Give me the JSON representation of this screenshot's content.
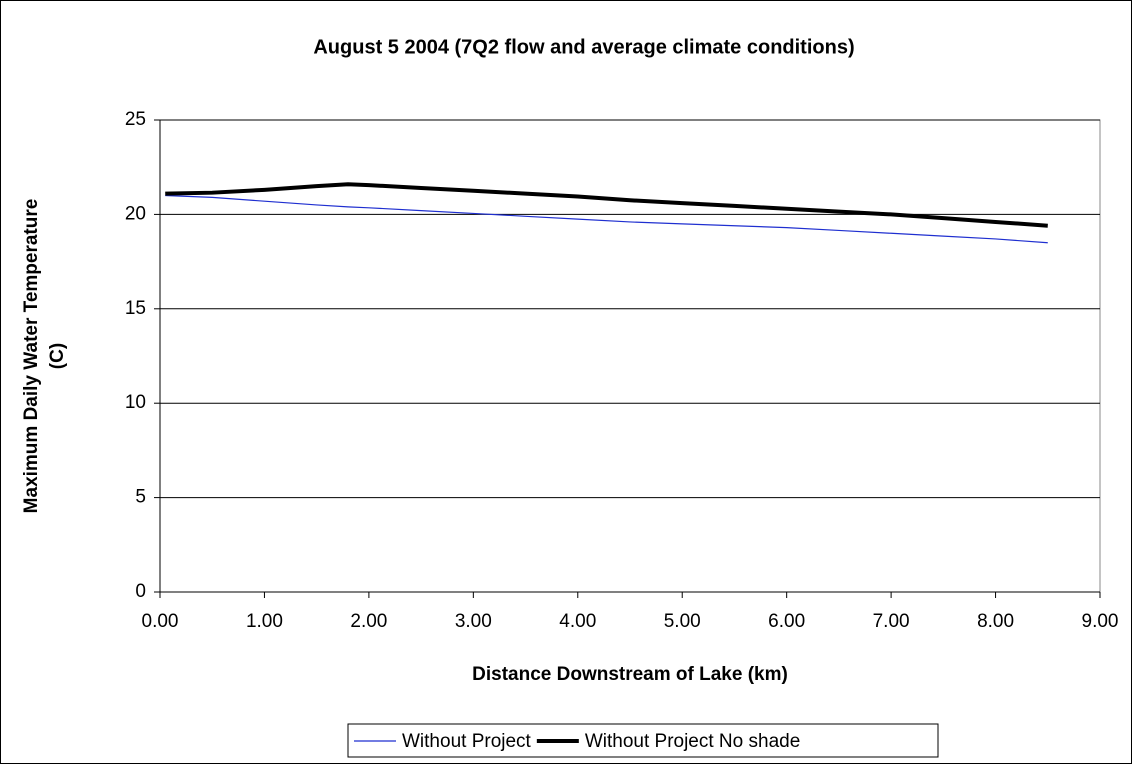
{
  "chart_data": {
    "type": "line",
    "title": "August 5 2004 (7Q2 flow and average climate conditions)",
    "xlabel": "Distance Downstream of Lake (km)",
    "ylabel": [
      "Maximum Daily Water Temperature",
      "(C)"
    ],
    "x": [
      0.05,
      0.5,
      1,
      1.5,
      1.8,
      2,
      2.5,
      3,
      3.5,
      4,
      4.5,
      5,
      5.5,
      6,
      6.5,
      7,
      7.5,
      8,
      8.5
    ],
    "series": [
      {
        "name": "Without Project",
        "color": "#1f2fd0",
        "width": 1.2,
        "values": [
          21.0,
          20.9,
          20.7,
          20.5,
          20.4,
          20.35,
          20.2,
          20.05,
          19.9,
          19.75,
          19.6,
          19.5,
          19.4,
          19.3,
          19.15,
          19.0,
          18.85,
          18.7,
          18.5
        ]
      },
      {
        "name": "Without Project No shade",
        "color": "#000000",
        "width": 4,
        "values": [
          21.1,
          21.15,
          21.3,
          21.5,
          21.6,
          21.55,
          21.4,
          21.25,
          21.1,
          20.95,
          20.75,
          20.6,
          20.45,
          20.3,
          20.15,
          20.0,
          19.8,
          19.6,
          19.4
        ]
      }
    ],
    "xlim": [
      0,
      9
    ],
    "ylim": [
      0,
      25
    ],
    "xticks": [
      {
        "value": 0,
        "label": "0.00"
      },
      {
        "value": 1,
        "label": "1.00"
      },
      {
        "value": 2,
        "label": "2.00"
      },
      {
        "value": 3,
        "label": "3.00"
      },
      {
        "value": 4,
        "label": "4.00"
      },
      {
        "value": 5,
        "label": "5.00"
      },
      {
        "value": 6,
        "label": "6.00"
      },
      {
        "value": 7,
        "label": "7.00"
      },
      {
        "value": 8,
        "label": "8.00"
      },
      {
        "value": 9,
        "label": "9.00"
      }
    ],
    "yticks": [
      0,
      5,
      10,
      15,
      20,
      25
    ],
    "grid": true,
    "legend": "bottom"
  }
}
